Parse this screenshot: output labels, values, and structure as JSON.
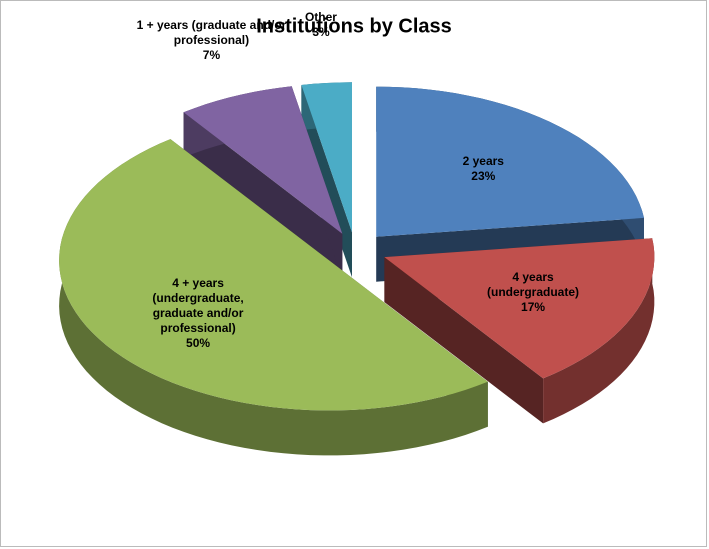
{
  "chart_data": {
    "type": "pie3d",
    "title": "Institutions by Class",
    "categories": [
      "2 years",
      "4 years (undergraduate)",
      "4 + years (undergraduate, graduate and/or professional)",
      "1 + years (graduate and/or professional)",
      "Other"
    ],
    "values": [
      23,
      17,
      50,
      7,
      3
    ],
    "value_labels": [
      "23%",
      "17%",
      "50%",
      "7%",
      "3%"
    ],
    "colors": [
      "#4f81bd",
      "#c0504d",
      "#9bbb59",
      "#8064a2",
      "#4bacc6"
    ]
  }
}
